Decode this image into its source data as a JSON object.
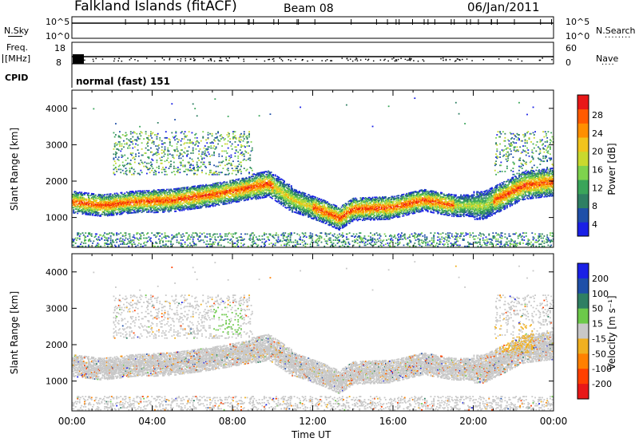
{
  "header": {
    "station": "Falkland Islands (fitACF)",
    "beam": "Beam 08",
    "date": "06/Jan/2011"
  },
  "side_labels": {
    "nsky": "N.Sky",
    "nsearch": "N.Search",
    "freq": "Freq.",
    "freq_unit": "[MHz]",
    "nave": "Nave",
    "cpid": "CPID",
    "cpid_value": "normal (fast) 151"
  },
  "noise_panel": {
    "left_ticks": [
      "10^5",
      "10^0"
    ],
    "right_ticks": [
      "10^5",
      "10^0"
    ]
  },
  "freq_panel": {
    "left_ticks": [
      "18",
      "8"
    ],
    "right_ticks": [
      "60",
      "0"
    ]
  },
  "chart_data": [
    {
      "type": "heatmap",
      "name": "power",
      "ylabel": "Slant Range [km]",
      "ylim": [
        180,
        4500
      ],
      "y_ticks": [
        1000,
        2000,
        3000,
        4000
      ],
      "xlim": [
        0,
        24
      ],
      "colorbar_label": "Power [dB]",
      "colorbar_ticks": [
        "28",
        "24",
        "20",
        "16",
        "12",
        "8",
        "4"
      ],
      "colors": [
        "#1a20e6",
        "#1f4fa8",
        "#2f7f63",
        "#3aa55a",
        "#7ed24d",
        "#c9d92e",
        "#f2c41c",
        "#ff8f00",
        "#ff5a00",
        "#e81818"
      ]
    },
    {
      "type": "heatmap",
      "name": "velocity",
      "ylabel": "Slant Range [km]",
      "ylim": [
        180,
        4500
      ],
      "y_ticks": [
        1000,
        2000,
        3000,
        4000
      ],
      "xlim": [
        0,
        24
      ],
      "xlabel": "Time UT",
      "x_tick_labels": [
        "00:00",
        "04:00",
        "08:00",
        "12:00",
        "16:00",
        "20:00",
        "00:00"
      ],
      "colorbar_label": "Velocity [m s⁻¹]",
      "colorbar_ticks": [
        "200",
        "100",
        "50",
        "15",
        "-15",
        "-50",
        "-100",
        "-200"
      ],
      "colors": [
        "#1a20e6",
        "#1f4fa8",
        "#2f7f63",
        "#6cc94a",
        "#c8c8c8",
        "#f0b020",
        "#ff8000",
        "#ff4000",
        "#e81818"
      ]
    }
  ]
}
